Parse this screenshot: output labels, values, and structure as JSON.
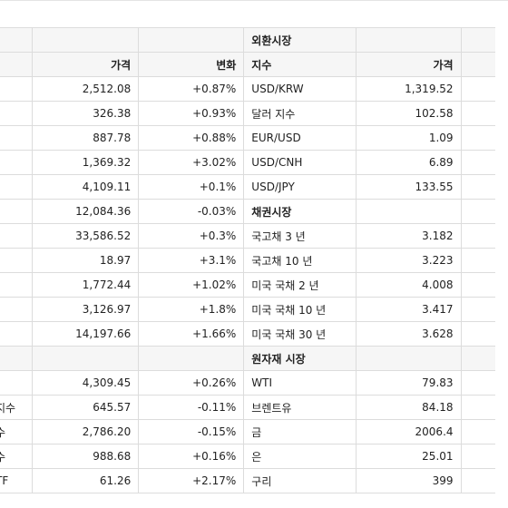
{
  "columns": {
    "price": "가격",
    "change": "변화",
    "index": "지수",
    "fx_price": "가격"
  },
  "sections": {
    "fx": "외환시장",
    "bonds": "채권시장",
    "commodities": "원자재 시장"
  },
  "rows": [
    {
      "type": "section-left-blank",
      "right_label": "외환시장"
    },
    {
      "type": "header"
    },
    {
      "left_name": "",
      "price": "2,512.08",
      "change": "+0.87%",
      "right_name": "USD/KRW",
      "right_price": "1,319.52"
    },
    {
      "left_name": "",
      "price": "326.38",
      "change": "+0.93%",
      "right_name": "달러 지수",
      "right_price": "102.58"
    },
    {
      "left_name": "",
      "price": "887.78",
      "change": "+0.88%",
      "right_name": "EUR/USD",
      "right_price": "1.09"
    },
    {
      "left_name": "",
      "price": "1,369.32",
      "change": "+3.02%",
      "right_name": "USD/CNH",
      "right_price": "6.89"
    },
    {
      "left_name": "",
      "price": "4,109.11",
      "change": "+0.1%",
      "right_name": "USD/JPY",
      "right_price": "133.55"
    },
    {
      "left_name": "",
      "price": "12,084.36",
      "change": "-0.03%",
      "right_section": "채권시장"
    },
    {
      "left_name": "",
      "price": "33,586.52",
      "change": "+0.3%",
      "right_name": "국고채  3 년",
      "right_price": "3.182"
    },
    {
      "left_name": "",
      "price": "18.97",
      "change": "+3.1%",
      "right_name": "국고채 10 년",
      "right_price": "3.223"
    },
    {
      "left_name": "",
      "price": "1,772.44",
      "change": "+1.02%",
      "right_name": "미국 국채  2 년",
      "right_price": "4.008"
    },
    {
      "left_name": "",
      "price": "3,126.97",
      "change": "+1.8%",
      "right_name": "미국 국채  10 년",
      "right_price": "3.417"
    },
    {
      "left_name": "",
      "price": "14,197.66",
      "change": "+1.66%",
      "right_name": "미국 국채 30 년",
      "right_price": "3.628"
    },
    {
      "type": "section-left-blank",
      "right_label": "원자재 시장"
    },
    {
      "left_name": "",
      "price": "4,309.45",
      "change": "+0.26%",
      "right_name": "WTI",
      "right_price": "79.83"
    },
    {
      "left_name": "지수",
      "price": "645.57",
      "change": "-0.11%",
      "right_name": "브렌트유",
      "right_price": "84.18"
    },
    {
      "left_name": "수",
      "price": "2,786.20",
      "change": "-0.15%",
      "right_name": "금",
      "right_price": "2006.4"
    },
    {
      "left_name": "수",
      "price": "988.68",
      "change": "+0.16%",
      "right_name": "은",
      "right_price": "25.01"
    },
    {
      "left_name": "TF",
      "price": "61.26",
      "change": "+2.17%",
      "right_name": "구리",
      "right_price": "399"
    }
  ]
}
